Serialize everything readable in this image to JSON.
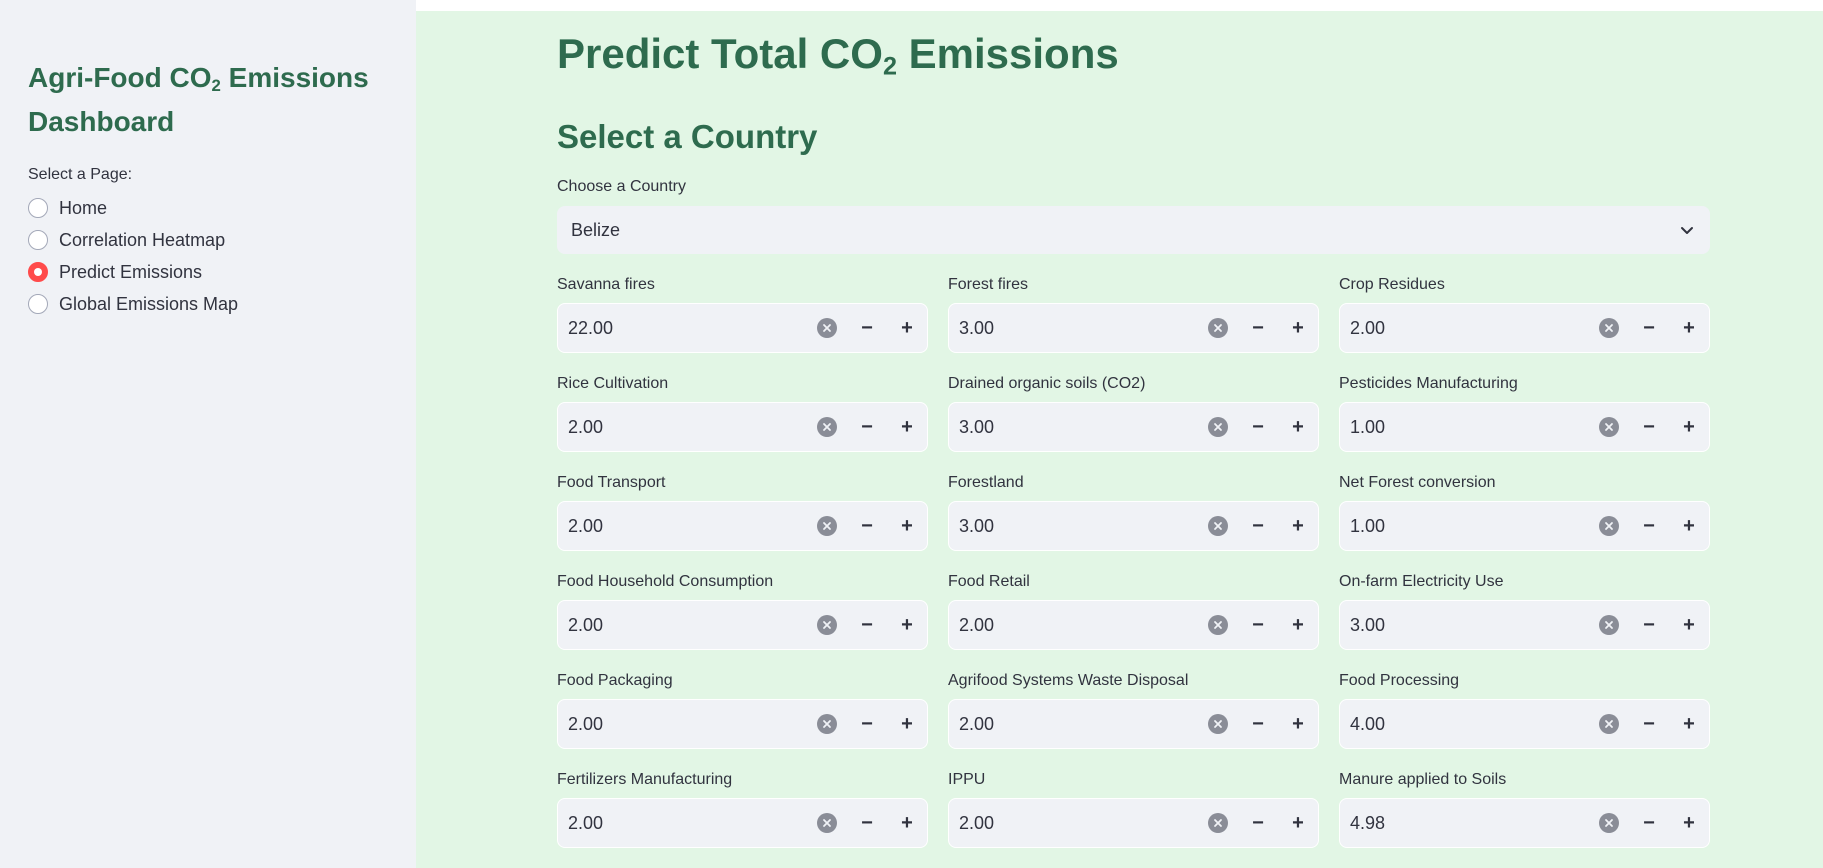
{
  "sidebar": {
    "title_part1": "Agri-Food CO",
    "title_sub": "2",
    "title_part2": " Emissions Dashboard",
    "radio_label": "Select a Page:",
    "items": [
      {
        "label": "Home",
        "selected": false
      },
      {
        "label": "Correlation Heatmap",
        "selected": false
      },
      {
        "label": "Predict Emissions",
        "selected": true
      },
      {
        "label": "Global Emissions Map",
        "selected": false
      }
    ]
  },
  "main": {
    "title_part1": "Predict Total CO",
    "title_sub": "2",
    "title_part2": " Emissions",
    "section_title": "Select a Country",
    "country_label": "Choose a Country",
    "country_value": "Belize",
    "fields": [
      {
        "label": "Savanna fires",
        "value": "22.00"
      },
      {
        "label": "Forest fires",
        "value": "3.00"
      },
      {
        "label": "Crop Residues",
        "value": "2.00"
      },
      {
        "label": "Rice Cultivation",
        "value": "2.00"
      },
      {
        "label": "Drained organic soils (CO2)",
        "value": "3.00"
      },
      {
        "label": "Pesticides Manufacturing",
        "value": "1.00"
      },
      {
        "label": "Food Transport",
        "value": "2.00"
      },
      {
        "label": "Forestland",
        "value": "3.00"
      },
      {
        "label": "Net Forest conversion",
        "value": "1.00"
      },
      {
        "label": "Food Household Consumption",
        "value": "2.00"
      },
      {
        "label": "Food Retail",
        "value": "2.00"
      },
      {
        "label": "On-farm Electricity Use",
        "value": "3.00"
      },
      {
        "label": "Food Packaging",
        "value": "2.00"
      },
      {
        "label": "Agrifood Systems Waste Disposal",
        "value": "2.00"
      },
      {
        "label": "Food Processing",
        "value": "4.00"
      },
      {
        "label": "Fertilizers Manufacturing",
        "value": "2.00"
      },
      {
        "label": "IPPU",
        "value": "2.00"
      },
      {
        "label": "Manure applied to Soils",
        "value": "4.98"
      }
    ]
  },
  "controls": {
    "minus": "−",
    "plus": "+"
  },
  "colors": {
    "accent": "#ff4b4b",
    "heading": "#2e6b4e",
    "main_bg": "#e2f6e5",
    "sidebar_bg": "#f0f2f6"
  }
}
